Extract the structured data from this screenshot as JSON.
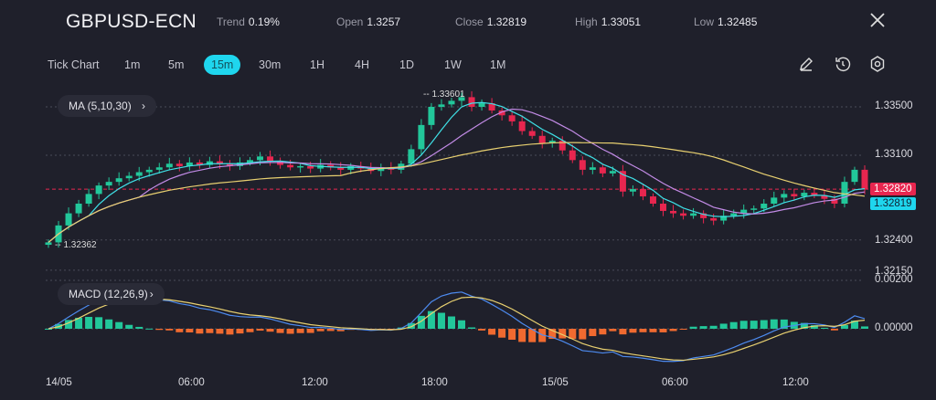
{
  "header": {
    "symbol": "GBPUSD-ECN",
    "stats": [
      {
        "label": "Trend",
        "value": "0.19%"
      },
      {
        "label": "Open",
        "value": "1.3257"
      },
      {
        "label": "Close",
        "value": "1.32819"
      },
      {
        "label": "High",
        "value": "1.33051"
      },
      {
        "label": "Low",
        "value": "1.32485"
      }
    ]
  },
  "timeframes": [
    "Tick Chart",
    "1m",
    "5m",
    "15m",
    "30m",
    "1H",
    "4H",
    "1D",
    "1W",
    "1M"
  ],
  "active_timeframe": "15m",
  "toolbar_icons": [
    "pencil-icon",
    "reset-timer-icon",
    "gear-icon"
  ],
  "indicators": {
    "ma": "MA (5,10,30)",
    "macd": "MACD (12,26,9)"
  },
  "price_axis": [
    "1.33500",
    "1.33100",
    "1.32400",
    "1.32150"
  ],
  "macd_axis": [
    "0.00200",
    "0.00000"
  ],
  "price_tags": {
    "last": "1.32820",
    "close": "1.32819"
  },
  "annotations": {
    "high": "1.33601",
    "low": "1.32362"
  },
  "time_axis": [
    "14/05",
    "06:00",
    "12:00",
    "18:00",
    "15/05",
    "06:00",
    "12:00"
  ],
  "colors": {
    "up": "#22c79a",
    "down": "#e8264f",
    "accent": "#1fd6ee",
    "ma5": "#3fe0e6",
    "ma10": "#c28be6",
    "ma30": "#e8d070",
    "macd": "#4d8bf0",
    "signal": "#e8d070",
    "hist_pos": "#22c79a",
    "hist_neg": "#f06a30"
  },
  "chart_data": {
    "type": "candlestick",
    "first_open": 1.3236,
    "closes": [
      1.3238,
      1.3252,
      1.3262,
      1.327,
      1.3278,
      1.3285,
      1.3288,
      1.3291,
      1.3293,
      1.3296,
      1.3298,
      1.33,
      1.3303,
      1.3301,
      1.3304,
      1.3302,
      1.3305,
      1.3303,
      1.3301,
      1.3304,
      1.3306,
      1.3309,
      1.3305,
      1.3302,
      1.33,
      1.3301,
      1.3299,
      1.3302,
      1.33,
      1.3298,
      1.3301,
      1.3299,
      1.3297,
      1.33,
      1.3298,
      1.3303,
      1.3315,
      1.3335,
      1.335,
      1.3352,
      1.3355,
      1.3358,
      1.335,
      1.3353,
      1.3347,
      1.3343,
      1.3338,
      1.333,
      1.3326,
      1.332,
      1.3322,
      1.3314,
      1.3306,
      1.3298,
      1.33,
      1.3295,
      1.3297,
      1.328,
      1.3282,
      1.3276,
      1.327,
      1.3264,
      1.3262,
      1.326,
      1.3262,
      1.3258,
      1.3256,
      1.326,
      1.3262,
      1.3265,
      1.3266,
      1.327,
      1.3275,
      1.3278,
      1.3276,
      1.3279,
      1.3277,
      1.3274,
      1.327,
      1.3288,
      1.3298,
      1.32819
    ],
    "ylim": [
      1.3212,
      1.337
    ],
    "last_price": 1.3282
  }
}
